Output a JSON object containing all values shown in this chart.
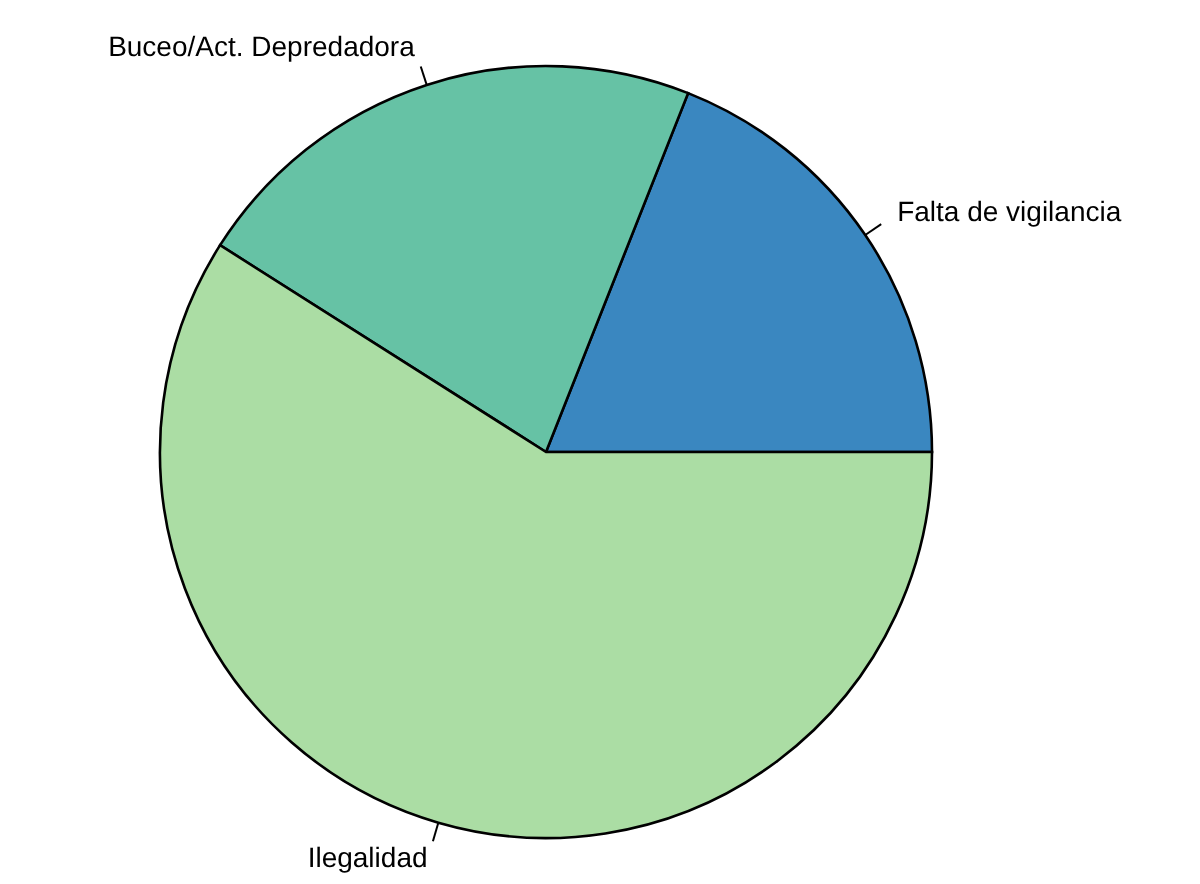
{
  "chart_data": {
    "type": "pie",
    "categories": [
      "Falta de vigilancia",
      "Buceo/Act. Depredadora",
      "Ilegalidad"
    ],
    "values": [
      19,
      22,
      59
    ],
    "colors": [
      "#3a87c0",
      "#66c2a5",
      "#abdda4"
    ]
  }
}
